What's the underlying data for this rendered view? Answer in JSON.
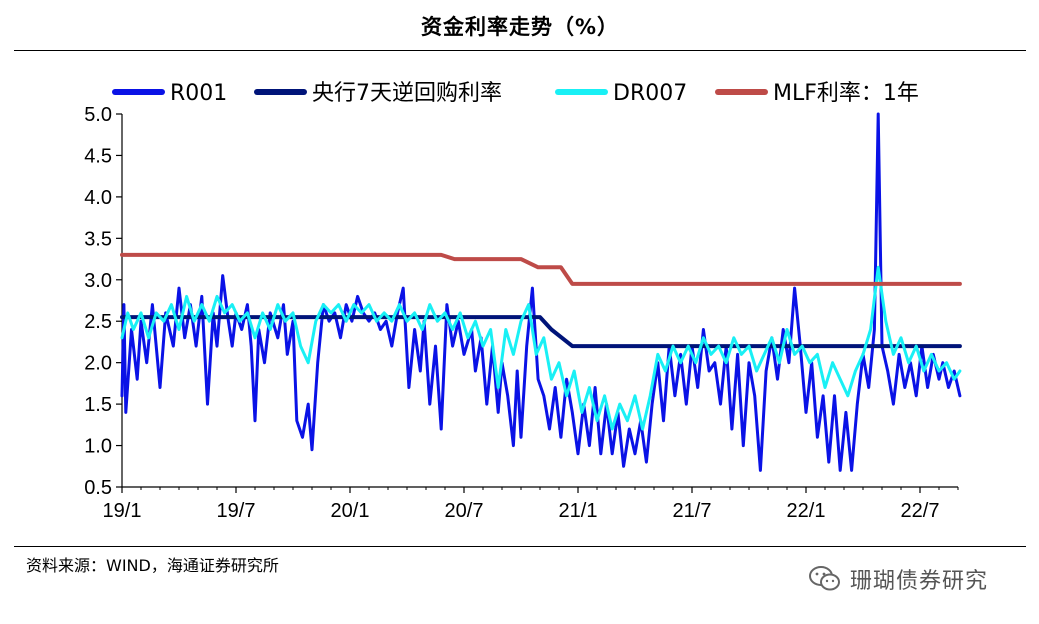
{
  "header": {
    "title": "资金利率走势（%）"
  },
  "footer": {
    "source": "资料来源：WIND，海通证券研究所"
  },
  "watermark": {
    "text": "珊瑚债券研究"
  },
  "colors": {
    "r001": "#0A12E6",
    "policy": "#001479",
    "dr007": "#19F0F5",
    "mlf": "#BE4B48",
    "axis": "#000000"
  },
  "chart_data": {
    "type": "line",
    "title": "资金利率走势（%）",
    "xlabel": "",
    "ylabel": "",
    "ylim": [
      0.5,
      5.0
    ],
    "yticks": [
      "0.5",
      "1.0",
      "1.5",
      "2.0",
      "2.5",
      "3.0",
      "3.5",
      "4.0",
      "4.5",
      "5.0"
    ],
    "xticks": [
      "19/1",
      "19/7",
      "20/1",
      "20/7",
      "21/1",
      "21/7",
      "22/1",
      "22/7"
    ],
    "x_unit": "months since 2019/01",
    "x_range": [
      0,
      44
    ],
    "legend_position": "top",
    "series": [
      {
        "name": "R001",
        "key": "r001",
        "points": [
          [
            0,
            1.6
          ],
          [
            0.1,
            2.7
          ],
          [
            0.2,
            1.4
          ],
          [
            0.5,
            2.4
          ],
          [
            0.8,
            1.8
          ],
          [
            1,
            2.5
          ],
          [
            1.3,
            2.0
          ],
          [
            1.6,
            2.7
          ],
          [
            2,
            1.7
          ],
          [
            2.3,
            2.6
          ],
          [
            2.7,
            2.2
          ],
          [
            3,
            2.9
          ],
          [
            3.3,
            2.3
          ],
          [
            3.6,
            2.7
          ],
          [
            3.9,
            2.2
          ],
          [
            4.2,
            2.8
          ],
          [
            4.5,
            1.5
          ],
          [
            4.8,
            2.6
          ],
          [
            5,
            2.2
          ],
          [
            5.3,
            3.05
          ],
          [
            5.6,
            2.5
          ],
          [
            5.8,
            2.2
          ],
          [
            6,
            2.6
          ],
          [
            6.3,
            2.4
          ],
          [
            6.6,
            2.7
          ],
          [
            6.8,
            2.2
          ],
          [
            7,
            1.3
          ],
          [
            7.2,
            2.4
          ],
          [
            7.5,
            2.0
          ],
          [
            7.8,
            2.6
          ],
          [
            8.2,
            2.3
          ],
          [
            8.5,
            2.7
          ],
          [
            8.7,
            2.1
          ],
          [
            9,
            2.5
          ],
          [
            9.2,
            1.3
          ],
          [
            9.5,
            1.1
          ],
          [
            9.8,
            1.5
          ],
          [
            10,
            0.95
          ],
          [
            10.3,
            2.0
          ],
          [
            10.6,
            2.7
          ],
          [
            10.9,
            2.5
          ],
          [
            11.2,
            2.6
          ],
          [
            11.5,
            2.3
          ],
          [
            11.8,
            2.7
          ],
          [
            12.1,
            2.5
          ],
          [
            12.4,
            2.8
          ],
          [
            12.7,
            2.6
          ],
          [
            13,
            2.5
          ],
          [
            13.3,
            2.6
          ],
          [
            13.6,
            2.4
          ],
          [
            13.9,
            2.5
          ],
          [
            14.2,
            2.2
          ],
          [
            14.5,
            2.6
          ],
          [
            14.8,
            2.9
          ],
          [
            15.1,
            1.7
          ],
          [
            15.4,
            2.4
          ],
          [
            15.7,
            1.9
          ],
          [
            15.9,
            2.5
          ],
          [
            16.2,
            1.5
          ],
          [
            16.5,
            2.2
          ],
          [
            16.8,
            1.2
          ],
          [
            17.1,
            2.7
          ],
          [
            17.4,
            2.2
          ],
          [
            17.7,
            2.5
          ],
          [
            18,
            2.1
          ],
          [
            18.4,
            2.4
          ],
          [
            18.6,
            1.9
          ],
          [
            18.9,
            2.3
          ],
          [
            19.2,
            1.5
          ],
          [
            19.5,
            2.2
          ],
          [
            19.8,
            1.4
          ],
          [
            20,
            2.0
          ],
          [
            20.3,
            1.6
          ],
          [
            20.6,
            1.0
          ],
          [
            20.8,
            1.9
          ],
          [
            21,
            1.1
          ],
          [
            21.3,
            2.2
          ],
          [
            21.6,
            2.9
          ],
          [
            21.9,
            1.8
          ],
          [
            22.2,
            1.6
          ],
          [
            22.5,
            1.2
          ],
          [
            22.8,
            1.7
          ],
          [
            23.1,
            1.1
          ],
          [
            23.4,
            1.8
          ],
          [
            23.7,
            1.4
          ],
          [
            24,
            0.9
          ],
          [
            24.3,
            1.5
          ],
          [
            24.6,
            1.0
          ],
          [
            24.9,
            1.7
          ],
          [
            25.2,
            0.9
          ],
          [
            25.5,
            1.5
          ],
          [
            25.8,
            0.9
          ],
          [
            26.1,
            1.4
          ],
          [
            26.4,
            0.75
          ],
          [
            26.7,
            1.2
          ],
          [
            27,
            0.9
          ],
          [
            27.3,
            1.3
          ],
          [
            27.6,
            0.8
          ],
          [
            27.9,
            1.5
          ],
          [
            28.2,
            2.0
          ],
          [
            28.5,
            1.3
          ],
          [
            28.8,
            2.2
          ],
          [
            29.1,
            1.6
          ],
          [
            29.4,
            2.1
          ],
          [
            29.7,
            1.5
          ],
          [
            30,
            2.2
          ],
          [
            30.3,
            1.7
          ],
          [
            30.6,
            2.4
          ],
          [
            30.9,
            1.9
          ],
          [
            31.2,
            2.0
          ],
          [
            31.5,
            1.5
          ],
          [
            31.8,
            2.2
          ],
          [
            32.1,
            1.2
          ],
          [
            32.4,
            2.1
          ],
          [
            32.7,
            1.0
          ],
          [
            33,
            2.0
          ],
          [
            33.3,
            1.6
          ],
          [
            33.6,
            0.7
          ],
          [
            33.9,
            1.9
          ],
          [
            34.2,
            2.3
          ],
          [
            34.5,
            1.8
          ],
          [
            34.8,
            2.4
          ],
          [
            35.1,
            2.0
          ],
          [
            35.4,
            2.9
          ],
          [
            35.7,
            2.2
          ],
          [
            36,
            1.4
          ],
          [
            36.3,
            2.0
          ],
          [
            36.6,
            1.1
          ],
          [
            36.9,
            1.6
          ],
          [
            37.2,
            0.8
          ],
          [
            37.5,
            1.6
          ],
          [
            37.8,
            0.7
          ],
          [
            38.1,
            1.4
          ],
          [
            38.4,
            0.7
          ],
          [
            38.7,
            1.5
          ],
          [
            39,
            2.1
          ],
          [
            39.3,
            1.7
          ],
          [
            39.6,
            2.4
          ],
          [
            39.8,
            5.0
          ],
          [
            40,
            2.2
          ],
          [
            40.3,
            1.9
          ],
          [
            40.6,
            1.5
          ],
          [
            40.9,
            2.1
          ],
          [
            41.2,
            1.7
          ],
          [
            41.5,
            2.0
          ],
          [
            41.8,
            1.6
          ],
          [
            42.1,
            2.2
          ],
          [
            42.4,
            1.7
          ],
          [
            42.7,
            2.1
          ],
          [
            43,
            1.8
          ],
          [
            43.2,
            2.0
          ],
          [
            43.5,
            1.7
          ],
          [
            43.8,
            1.9
          ],
          [
            44.1,
            1.6
          ]
        ]
      },
      {
        "name": "央行7天逆回购利率",
        "key": "policy",
        "points": [
          [
            0,
            2.55
          ],
          [
            22.0,
            2.55
          ],
          [
            22.6,
            2.4
          ],
          [
            23.7,
            2.2
          ],
          [
            44.1,
            2.2
          ]
        ]
      },
      {
        "name": "DR007",
        "key": "dr007",
        "points": [
          [
            0,
            2.3
          ],
          [
            0.3,
            2.6
          ],
          [
            0.6,
            2.4
          ],
          [
            1,
            2.6
          ],
          [
            1.4,
            2.3
          ],
          [
            1.8,
            2.6
          ],
          [
            2.2,
            2.5
          ],
          [
            2.6,
            2.7
          ],
          [
            3,
            2.4
          ],
          [
            3.4,
            2.8
          ],
          [
            3.8,
            2.5
          ],
          [
            4.2,
            2.7
          ],
          [
            4.6,
            2.5
          ],
          [
            5,
            2.8
          ],
          [
            5.4,
            2.6
          ],
          [
            5.8,
            2.7
          ],
          [
            6.2,
            2.5
          ],
          [
            6.6,
            2.6
          ],
          [
            7,
            2.3
          ],
          [
            7.4,
            2.6
          ],
          [
            7.8,
            2.4
          ],
          [
            8.2,
            2.7
          ],
          [
            8.6,
            2.5
          ],
          [
            9,
            2.6
          ],
          [
            9.4,
            2.2
          ],
          [
            9.8,
            2.0
          ],
          [
            10.2,
            2.5
          ],
          [
            10.6,
            2.7
          ],
          [
            11,
            2.6
          ],
          [
            11.4,
            2.7
          ],
          [
            11.8,
            2.5
          ],
          [
            12.2,
            2.7
          ],
          [
            12.6,
            2.6
          ],
          [
            13,
            2.7
          ],
          [
            13.4,
            2.5
          ],
          [
            13.8,
            2.6
          ],
          [
            14.2,
            2.5
          ],
          [
            14.6,
            2.7
          ],
          [
            15,
            2.5
          ],
          [
            15.4,
            2.6
          ],
          [
            15.8,
            2.4
          ],
          [
            16.2,
            2.7
          ],
          [
            16.6,
            2.5
          ],
          [
            17,
            2.6
          ],
          [
            17.4,
            2.4
          ],
          [
            17.8,
            2.6
          ],
          [
            18.2,
            2.3
          ],
          [
            18.6,
            2.5
          ],
          [
            19,
            2.2
          ],
          [
            19.4,
            2.4
          ],
          [
            19.8,
            1.7
          ],
          [
            20.2,
            2.4
          ],
          [
            20.6,
            2.1
          ],
          [
            21,
            2.5
          ],
          [
            21.4,
            2.7
          ],
          [
            21.8,
            2.1
          ],
          [
            22.2,
            2.3
          ],
          [
            22.6,
            1.8
          ],
          [
            23,
            2.0
          ],
          [
            23.4,
            1.6
          ],
          [
            23.8,
            1.9
          ],
          [
            24.2,
            1.4
          ],
          [
            24.6,
            1.7
          ],
          [
            25,
            1.3
          ],
          [
            25.4,
            1.6
          ],
          [
            25.8,
            1.2
          ],
          [
            26.2,
            1.5
          ],
          [
            26.6,
            1.3
          ],
          [
            27,
            1.6
          ],
          [
            27.4,
            1.2
          ],
          [
            27.8,
            1.6
          ],
          [
            28.2,
            2.1
          ],
          [
            28.6,
            1.9
          ],
          [
            29,
            2.2
          ],
          [
            29.4,
            2.0
          ],
          [
            29.8,
            2.2
          ],
          [
            30.2,
            2.0
          ],
          [
            30.6,
            2.3
          ],
          [
            31,
            2.1
          ],
          [
            31.4,
            2.2
          ],
          [
            31.8,
            2.0
          ],
          [
            32.2,
            2.3
          ],
          [
            32.6,
            2.1
          ],
          [
            33,
            2.2
          ],
          [
            33.4,
            1.9
          ],
          [
            33.8,
            2.1
          ],
          [
            34.2,
            2.3
          ],
          [
            34.6,
            2.0
          ],
          [
            35,
            2.4
          ],
          [
            35.4,
            2.1
          ],
          [
            35.8,
            2.2
          ],
          [
            36.2,
            2.0
          ],
          [
            36.6,
            2.1
          ],
          [
            37,
            1.7
          ],
          [
            37.4,
            2.0
          ],
          [
            37.8,
            1.8
          ],
          [
            38.2,
            1.6
          ],
          [
            38.6,
            1.9
          ],
          [
            39,
            2.1
          ],
          [
            39.4,
            2.4
          ],
          [
            39.8,
            3.15
          ],
          [
            40.2,
            2.5
          ],
          [
            40.6,
            2.1
          ],
          [
            41,
            2.3
          ],
          [
            41.4,
            2.0
          ],
          [
            41.8,
            2.2
          ],
          [
            42.2,
            1.9
          ],
          [
            42.6,
            2.1
          ],
          [
            43,
            1.9
          ],
          [
            43.4,
            2.0
          ],
          [
            43.8,
            1.8
          ],
          [
            44.1,
            1.9
          ]
        ]
      },
      {
        "name": "MLF利率：1年",
        "key": "mlf",
        "points": [
          [
            0,
            3.3
          ],
          [
            16.8,
            3.3
          ],
          [
            17.5,
            3.25
          ],
          [
            21.0,
            3.25
          ],
          [
            21.9,
            3.15
          ],
          [
            23.1,
            3.15
          ],
          [
            23.7,
            2.95
          ],
          [
            44.1,
            2.95
          ]
        ]
      }
    ]
  }
}
